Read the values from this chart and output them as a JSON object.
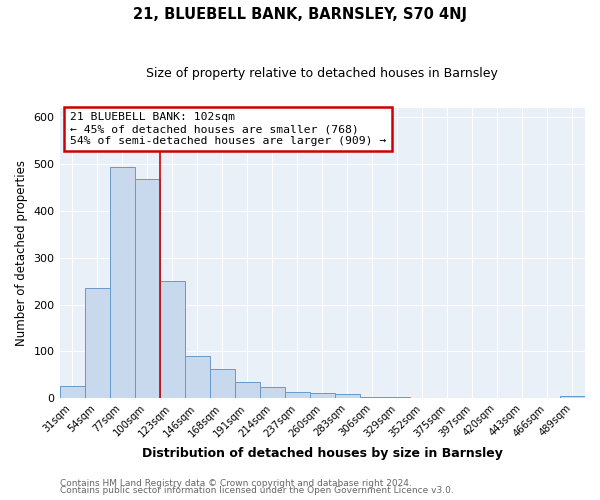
{
  "title": "21, BLUEBELL BANK, BARNSLEY, S70 4NJ",
  "subtitle": "Size of property relative to detached houses in Barnsley",
  "xlabel": "Distribution of detached houses by size in Barnsley",
  "ylabel": "Number of detached properties",
  "bar_labels": [
    "31sqm",
    "54sqm",
    "77sqm",
    "100sqm",
    "123sqm",
    "146sqm",
    "168sqm",
    "191sqm",
    "214sqm",
    "237sqm",
    "260sqm",
    "283sqm",
    "306sqm",
    "329sqm",
    "352sqm",
    "375sqm",
    "397sqm",
    "420sqm",
    "443sqm",
    "466sqm",
    "489sqm"
  ],
  "bar_values": [
    27,
    235,
    493,
    468,
    250,
    90,
    62,
    34,
    24,
    14,
    11,
    10,
    3,
    2,
    1,
    1,
    1,
    1,
    1,
    0,
    5
  ],
  "bar_color": "#c9d9ed",
  "bar_edge_color": "#6699cc",
  "background_color": "#eaf0f8",
  "grid_color": "#ffffff",
  "property_label": "21 BLUEBELL BANK: 102sqm",
  "annotation_line1": "← 45% of detached houses are smaller (768)",
  "annotation_line2": "54% of semi-detached houses are larger (909) →",
  "vline_x_index": 3,
  "vline_color": "#cc0000",
  "annotation_box_color": "#ffffff",
  "annotation_box_edge": "#cc0000",
  "ylim": [
    0,
    620
  ],
  "footer1": "Contains HM Land Registry data © Crown copyright and database right 2024.",
  "footer2": "Contains public sector information licensed under the Open Government Licence v3.0."
}
